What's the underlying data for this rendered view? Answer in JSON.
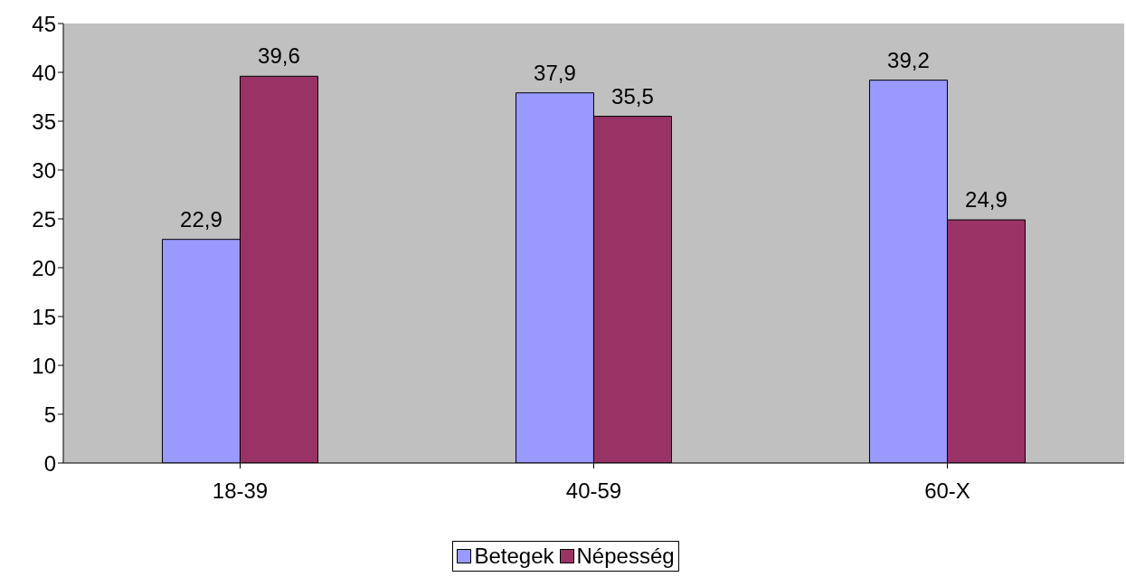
{
  "chart_data": {
    "type": "bar",
    "categories": [
      "18-39",
      "40-59",
      "60-X"
    ],
    "series": [
      {
        "name": "Betegek",
        "color": "#9999ff",
        "values": [
          22.9,
          37.9,
          39.2
        ],
        "value_labels": [
          "22,9",
          "37,9",
          "39,2"
        ]
      },
      {
        "name": "Népesség",
        "color": "#993366",
        "values": [
          39.6,
          35.5,
          24.9
        ],
        "value_labels": [
          "39,6",
          "35,5",
          "24,9"
        ]
      }
    ],
    "ylim": [
      0,
      45
    ],
    "yticks": [
      0,
      5,
      10,
      15,
      20,
      25,
      30,
      35,
      40,
      45
    ],
    "legend": "bottom"
  }
}
